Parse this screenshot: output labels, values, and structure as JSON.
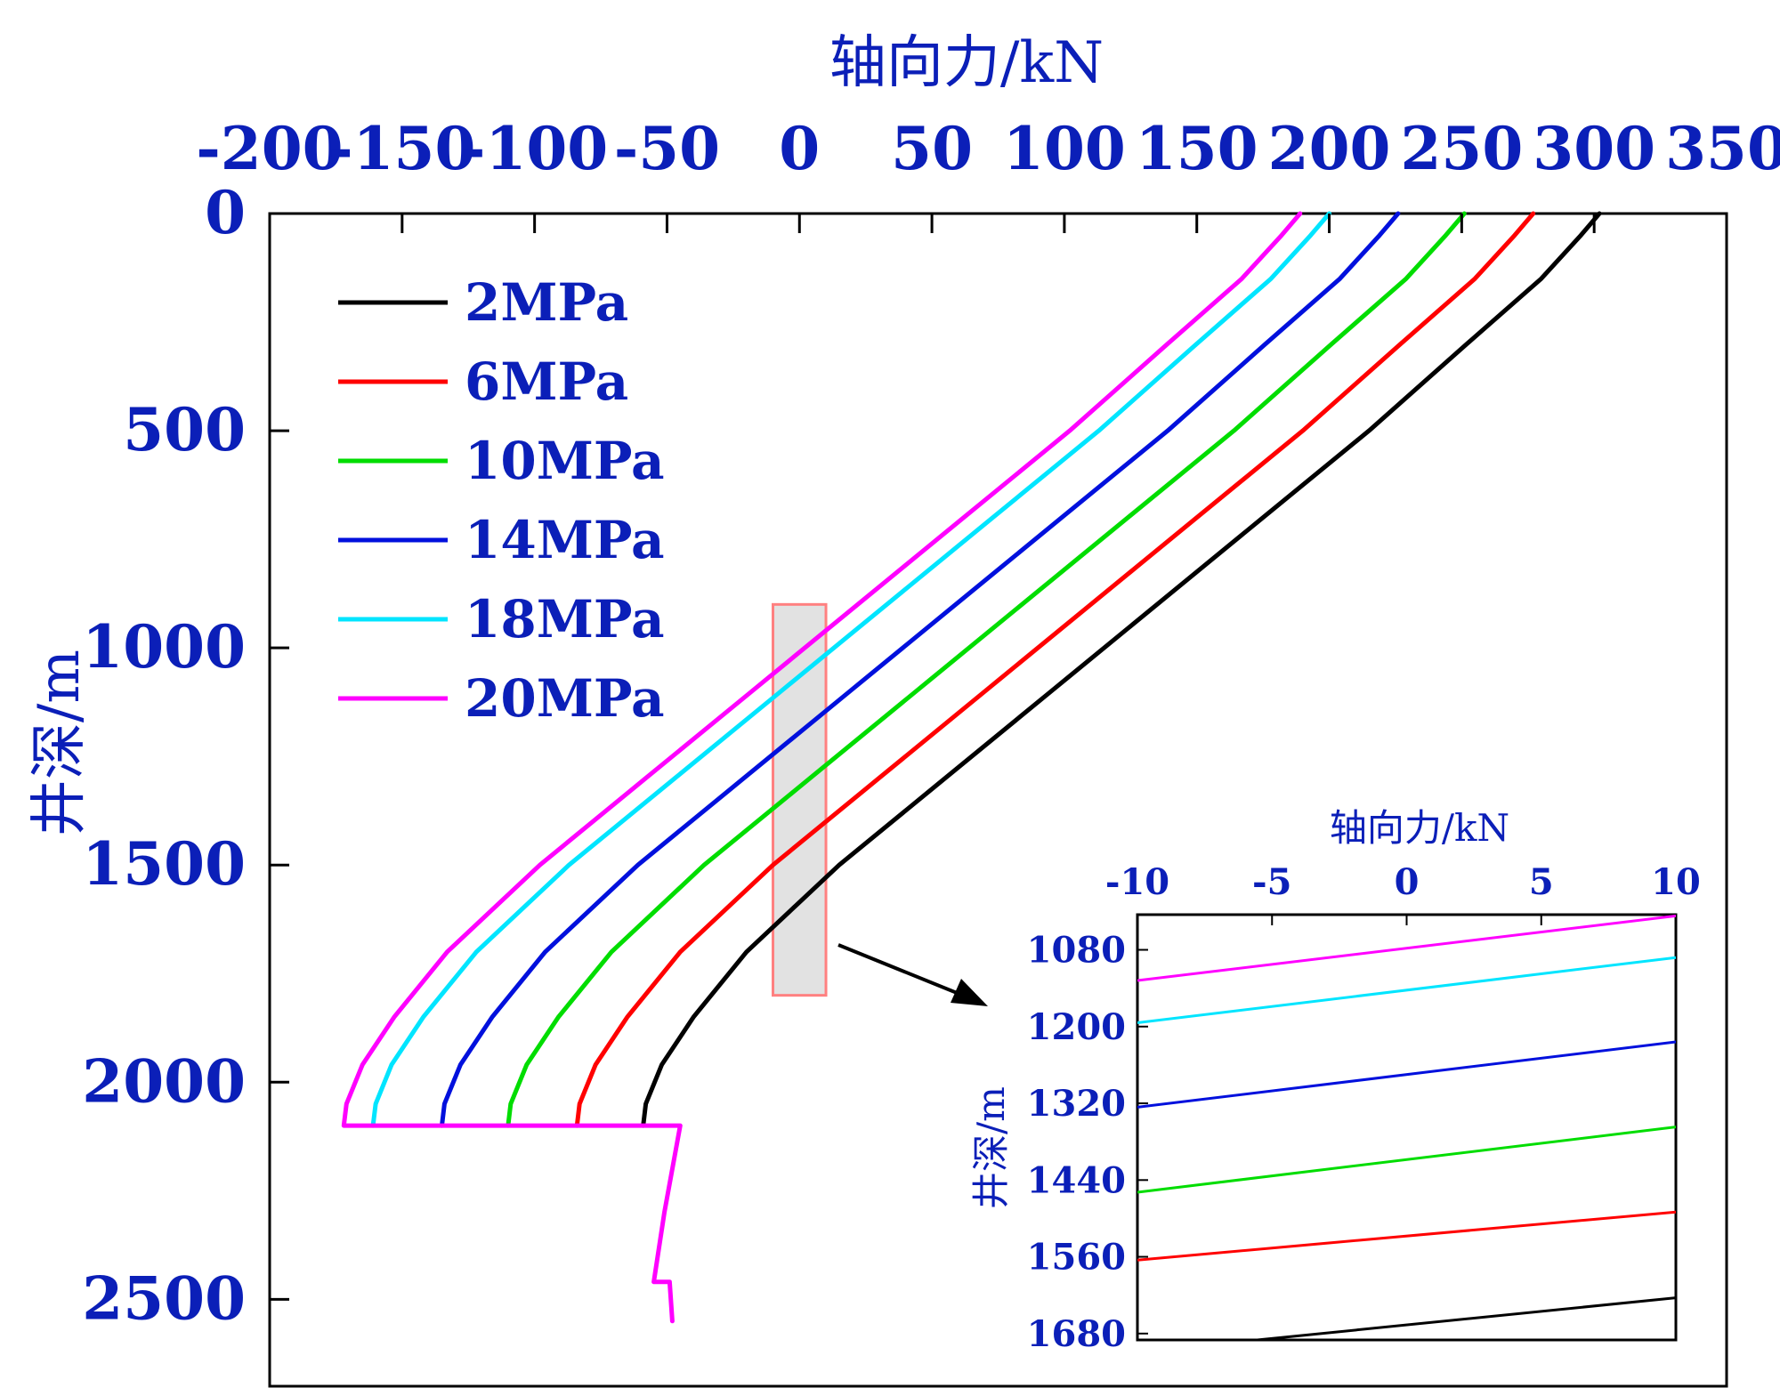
{
  "chart_data": [
    {
      "type": "line",
      "panel": "main",
      "xlabel": "轴向力/kN",
      "ylabel": "井深/m",
      "x_axis_position": "top",
      "y_axis_inverted": true,
      "xlim": [
        -200,
        350
      ],
      "ylim": [
        0,
        2700
      ],
      "xticks": [
        "-200",
        "-150",
        "-100",
        "-50",
        "0",
        "50",
        "100",
        "150",
        "200",
        "250",
        "300",
        "350"
      ],
      "yticks": [
        "0",
        "500",
        "1000",
        "1500",
        "2000",
        "2500"
      ],
      "grid": false,
      "legend_position": "top-left",
      "series": [
        {
          "name": "2MPa",
          "color": "#000000",
          "points": [
            [
              302,
              0
            ],
            [
              295,
              50
            ],
            [
              280,
              150
            ],
            [
              252,
              300
            ],
            [
              215,
              500
            ],
            [
              175,
              700
            ],
            [
              135,
              900
            ],
            [
              95,
              1100
            ],
            [
              55,
              1300
            ],
            [
              15,
              1500
            ],
            [
              -20,
              1700
            ],
            [
              -40,
              1850
            ],
            [
              -52,
              1960
            ],
            [
              -58,
              2050
            ],
            [
              -59,
              2100
            ]
          ]
        },
        {
          "name": "6MPa",
          "color": "#ff0000",
          "points": [
            [
              277,
              0
            ],
            [
              270,
              50
            ],
            [
              255,
              150
            ],
            [
              227,
              300
            ],
            [
              190,
              500
            ],
            [
              150,
              700
            ],
            [
              110,
              900
            ],
            [
              70,
              1100
            ],
            [
              30,
              1300
            ],
            [
              -10,
              1500
            ],
            [
              -45,
              1700
            ],
            [
              -65,
              1850
            ],
            [
              -77,
              1960
            ],
            [
              -83,
              2050
            ],
            [
              -84,
              2100
            ]
          ]
        },
        {
          "name": "10MPa",
          "color": "#00dd00",
          "points": [
            [
              251,
              0
            ],
            [
              244,
              50
            ],
            [
              229,
              150
            ],
            [
              201,
              300
            ],
            [
              164,
              500
            ],
            [
              124,
              700
            ],
            [
              84,
              900
            ],
            [
              44,
              1100
            ],
            [
              4,
              1300
            ],
            [
              -36,
              1500
            ],
            [
              -71,
              1700
            ],
            [
              -91,
              1850
            ],
            [
              -103,
              1960
            ],
            [
              -109,
              2050
            ],
            [
              -110,
              2100
            ]
          ]
        },
        {
          "name": "14MPa",
          "color": "#0010dd",
          "points": [
            [
              226,
              0
            ],
            [
              219,
              50
            ],
            [
              204,
              150
            ],
            [
              176,
              300
            ],
            [
              139,
              500
            ],
            [
              99,
              700
            ],
            [
              59,
              900
            ],
            [
              19,
              1100
            ],
            [
              -21,
              1300
            ],
            [
              -61,
              1500
            ],
            [
              -96,
              1700
            ],
            [
              -116,
              1850
            ],
            [
              -128,
              1960
            ],
            [
              -134,
              2050
            ],
            [
              -135,
              2100
            ]
          ]
        },
        {
          "name": "18MPa",
          "color": "#00e5ff",
          "points": [
            [
              200,
              0
            ],
            [
              193,
              50
            ],
            [
              178,
              150
            ],
            [
              150,
              300
            ],
            [
              113,
              500
            ],
            [
              73,
              700
            ],
            [
              33,
              900
            ],
            [
              -7,
              1100
            ],
            [
              -47,
              1300
            ],
            [
              -87,
              1500
            ],
            [
              -122,
              1700
            ],
            [
              -142,
              1850
            ],
            [
              -154,
              1960
            ],
            [
              -160,
              2050
            ],
            [
              -161,
              2100
            ]
          ]
        },
        {
          "name": "20MPa",
          "color": "#ff00ff",
          "points": [
            [
              189,
              0
            ],
            [
              182,
              50
            ],
            [
              167,
              150
            ],
            [
              139,
              300
            ],
            [
              102,
              500
            ],
            [
              62,
              700
            ],
            [
              22,
              900
            ],
            [
              -18,
              1100
            ],
            [
              -58,
              1300
            ],
            [
              -98,
              1500
            ],
            [
              -133,
              1700
            ],
            [
              -153,
              1850
            ],
            [
              -165,
              1960
            ],
            [
              -171,
              2050
            ],
            [
              -172,
              2100
            ],
            [
              -45,
              2100
            ],
            [
              -51,
              2300
            ],
            [
              -55,
              2460
            ],
            [
              -49,
              2460
            ],
            [
              -48,
              2550
            ]
          ]
        }
      ]
    },
    {
      "type": "line",
      "panel": "inset",
      "xlabel": "轴向力/kN",
      "ylabel": "井深/m",
      "x_axis_position": "top",
      "y_axis_inverted": true,
      "xlim": [
        -10,
        10
      ],
      "ylim": [
        1025,
        1690
      ],
      "xticks": [
        "-10",
        "-5",
        "0",
        "5",
        "10"
      ],
      "yticks": [
        "1080",
        "1200",
        "1320",
        "1440",
        "1560",
        "1680"
      ],
      "series": [
        {
          "name": "20MPa",
          "color": "#ff00ff",
          "points": [
            [
              -10,
              1128
            ],
            [
              10,
              1027
            ]
          ]
        },
        {
          "name": "18MPa",
          "color": "#00e5ff",
          "points": [
            [
              -10,
              1194
            ],
            [
              10,
              1092
            ]
          ]
        },
        {
          "name": "14MPa",
          "color": "#0010dd",
          "points": [
            [
              -10,
              1326
            ],
            [
              10,
              1224
            ]
          ]
        },
        {
          "name": "10MPa",
          "color": "#00dd00",
          "points": [
            [
              -10,
              1459
            ],
            [
              10,
              1357
            ]
          ]
        },
        {
          "name": "6MPa",
          "color": "#ff0000",
          "points": [
            [
              -10,
              1565
            ],
            [
              10,
              1490
            ]
          ]
        },
        {
          "name": "2MPa",
          "color": "#000000",
          "points": [
            [
              -6,
              1692
            ],
            [
              10,
              1624
            ]
          ]
        }
      ]
    }
  ],
  "zoom_region": {
    "x_range": [
      -10,
      10
    ],
    "y_range": [
      900,
      1800
    ],
    "fill": "#e2e2e2",
    "stroke": "#ff8080"
  }
}
